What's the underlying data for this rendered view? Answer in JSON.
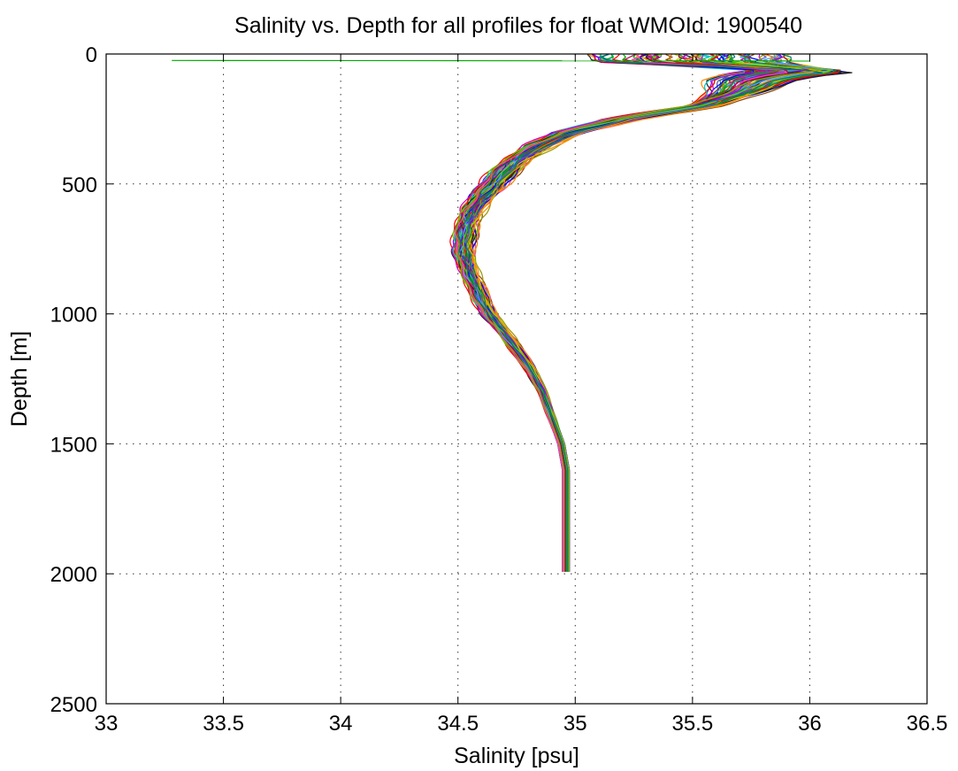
{
  "chart_data": {
    "type": "line",
    "title": "Salinity vs. Depth for all profiles for float WMOId: 1900540",
    "xlabel": "Salinity [psu]",
    "ylabel": "Depth [m]",
    "xlim": [
      33,
      36.5
    ],
    "ylim": [
      0,
      2500
    ],
    "y_reversed": true,
    "x_ticks": [
      33,
      33.5,
      34,
      34.5,
      35,
      35.5,
      36,
      36.5
    ],
    "x_tick_labels": [
      "33",
      "33.5",
      "34",
      "34.5",
      "35",
      "35.5",
      "36",
      "36.5"
    ],
    "y_ticks": [
      0,
      500,
      1000,
      1500,
      2000,
      2500
    ],
    "y_tick_labels": [
      "0",
      "500",
      "1000",
      "1500",
      "2000",
      "2500"
    ],
    "grid": true,
    "profile_count_estimate": 90,
    "representative_profile": {
      "depth": [
        5,
        20,
        40,
        60,
        80,
        100,
        150,
        200,
        250,
        300,
        350,
        400,
        450,
        500,
        550,
        600,
        650,
        700,
        750,
        800,
        850,
        900,
        950,
        1000,
        1100,
        1200,
        1300,
        1400,
        1500,
        1600,
        1700,
        1800,
        1900,
        2000
      ],
      "salinity": [
        35.5,
        35.6,
        36.05,
        36.1,
        35.9,
        35.8,
        35.7,
        35.55,
        35.2,
        34.98,
        34.85,
        34.76,
        34.7,
        34.65,
        34.6,
        34.56,
        34.54,
        34.53,
        34.52,
        34.53,
        34.55,
        34.58,
        34.6,
        34.63,
        34.72,
        34.8,
        34.86,
        34.9,
        34.94,
        34.96,
        34.96,
        34.96,
        34.96,
        34.96
      ]
    },
    "outlier_surface_profile": {
      "depth": [
        25,
        27
      ],
      "salinity": [
        33.28,
        36.0
      ]
    },
    "series_colors": [
      "#ff0000",
      "#00aa00",
      "#0000ff",
      "#00c8c8",
      "#cc00cc",
      "#c8c800",
      "#222222",
      "#ff8800",
      "#8800ff",
      "#008844",
      "#aa0044",
      "#44aaff",
      "#66cc00",
      "#884400",
      "#5555aa",
      "#ff44aa",
      "#007777",
      "#999900"
    ]
  }
}
